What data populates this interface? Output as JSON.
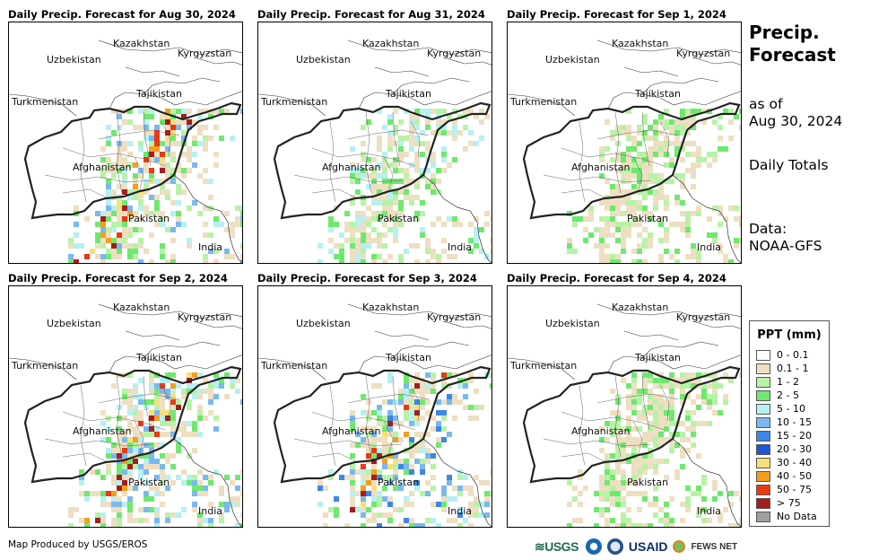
{
  "panels": [
    {
      "title": "Daily Precip. Forecast for Aug 30, 2024",
      "intensity": 3
    },
    {
      "title": "Daily Precip. Forecast for Aug 31, 2024",
      "intensity": 2
    },
    {
      "title": "Daily Precip. Forecast for Sep 1, 2024",
      "intensity": 1
    },
    {
      "title": "Daily Precip. Forecast for Sep 2, 2024",
      "intensity": 3
    },
    {
      "title": "Daily Precip. Forecast for Sep 3, 2024",
      "intensity": 4
    },
    {
      "title": "Daily Precip. Forecast for Sep 4, 2024",
      "intensity": 1
    }
  ],
  "map_labels": {
    "kazakhstan": "Kazakhstan",
    "kyrgyzstan": "Kyrgyzstan",
    "uzbekistan": "Uzbekistan",
    "tajikistan": "Tajikistan",
    "turkmenistan": "Turkmenistan",
    "afghanistan": "Afghanistan",
    "pakistan": "Pakistan",
    "india": "India"
  },
  "sidebar": {
    "title_line1": "Precip.",
    "title_line2": "Forecast",
    "asof_line1": "as of",
    "asof_line2": "Aug 30, 2024",
    "totals": "Daily Totals",
    "data_line1": "Data:",
    "data_line2": "NOAA-GFS"
  },
  "legend": {
    "title": "PPT (mm)",
    "items": [
      {
        "label": "0 - 0.1",
        "color": "#ffffff"
      },
      {
        "label": "0.1 - 1",
        "color": "#eedfc2"
      },
      {
        "label": "1 - 2",
        "color": "#b8f2a6"
      },
      {
        "label": "2 - 5",
        "color": "#6fe86f"
      },
      {
        "label": "5 - 10",
        "color": "#b6f0f2"
      },
      {
        "label": "10 - 15",
        "color": "#7ab8f0"
      },
      {
        "label": "15 - 20",
        "color": "#3e86e6"
      },
      {
        "label": "20 - 30",
        "color": "#1f56d6"
      },
      {
        "label": "30 - 40",
        "color": "#f7e07a"
      },
      {
        "label": "40 - 50",
        "color": "#f49e1e"
      },
      {
        "label": "50 - 75",
        "color": "#e83a12"
      },
      {
        "label": "> 75",
        "color": "#a61c1c"
      },
      {
        "label": "No Data",
        "color": "#a0a0a0"
      }
    ]
  },
  "footer": {
    "credit": "Map Produced by USGS/EROS",
    "logo_usgs": "≋USGS",
    "logo_usaid": "USAID",
    "logo_fews": "FEWS NET"
  }
}
